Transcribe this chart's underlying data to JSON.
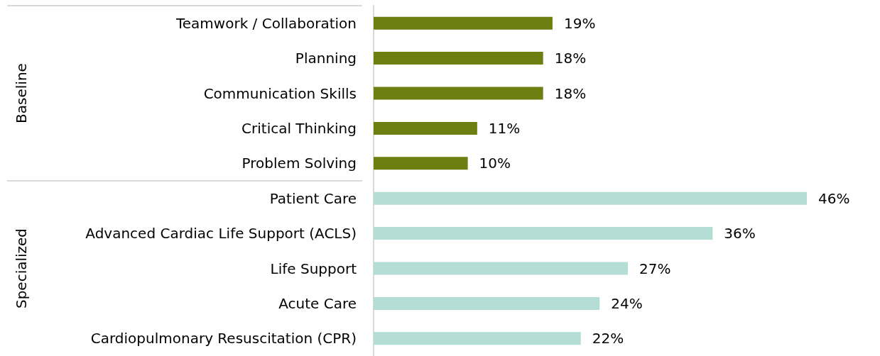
{
  "chart_data": {
    "type": "bar",
    "orientation": "horizontal",
    "categories": [
      "Teamwork / Collaboration",
      "Planning",
      "Communication Skills",
      "Critical Thinking",
      "Problem Solving",
      "Patient Care",
      "Advanced Cardiac Life Support (ACLS)",
      "Life Support",
      "Acute Care",
      "Cardiopulmonary Resuscitation (CPR)"
    ],
    "values": [
      19,
      18,
      18,
      11,
      10,
      46,
      36,
      27,
      24,
      22
    ],
    "value_labels": [
      "19%",
      "18%",
      "18%",
      "11%",
      "10%",
      "46%",
      "36%",
      "27%",
      "24%",
      "22%"
    ],
    "colors": [
      "#6e7f12",
      "#6e7f12",
      "#6e7f12",
      "#6e7f12",
      "#6e7f12",
      "#b3ddd5",
      "#b3ddd5",
      "#b3ddd5",
      "#b3ddd5",
      "#b3ddd5"
    ],
    "tick_labels": "y",
    "grid": false,
    "annotations": [
      "Baseline",
      "Specialized"
    ]
  }
}
